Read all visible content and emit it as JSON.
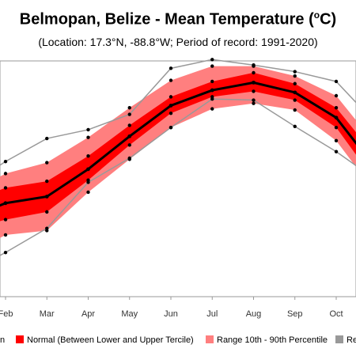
{
  "chart_data": {
    "type": "line",
    "title": "Belmopan, Belize - Mean Temperature (oC)",
    "subtitle": "(Location: 17.3°N, -88.8°W; Period of record: 1991-2020)",
    "categories": [
      "Feb",
      "Mar",
      "Apr",
      "May",
      "Jun",
      "Jul",
      "Aug",
      "Sep",
      "Oct"
    ],
    "x_range_months": [
      1.05,
      2.95
    ],
    "y_range": [
      0,
      100
    ],
    "grid": false,
    "legend_position": "bottom",
    "series": [
      {
        "name": "Mean",
        "color": "#000000",
        "x": [
          0.8,
          1,
          2,
          3,
          4,
          5,
          6,
          7,
          8,
          9,
          9.6
        ],
        "values": [
          39.0,
          40.5,
          43.5,
          56.0,
          71.0,
          85.0,
          92.0,
          95.5,
          91.0,
          79.5,
          65.0
        ]
      },
      {
        "name": "Normal (Between Lower and Upper Tercile)",
        "color": "#ff0000",
        "upper": [
          46.0,
          47.5,
          50.5,
          62.0,
          76.0,
          89.0,
          96.0,
          100.0,
          95.0,
          84.0,
          70.0
        ],
        "lower": [
          32.0,
          33.0,
          36.5,
          51.0,
          67.0,
          81.5,
          89.0,
          91.5,
          87.5,
          75.0,
          59.5
        ],
        "x": [
          0.8,
          1,
          2,
          3,
          4,
          5,
          6,
          7,
          8,
          9,
          9.6
        ]
      },
      {
        "name": "Range 10th - 90th Percentile",
        "color": "#ff7f7f",
        "upper": [
          52.0,
          54.0,
          59.0,
          70.5,
          84.0,
          96.5,
          103.0,
          103.0,
          98.5,
          89.5,
          75.5
        ],
        "lower": [
          24.0,
          26.0,
          28.0,
          45.5,
          60.5,
          75.0,
          83.5,
          86.0,
          83.0,
          69.0,
          54.0
        ],
        "x": [
          0.8,
          1,
          2,
          3,
          4,
          5,
          6,
          7,
          8,
          9,
          9.6
        ]
      },
      {
        "name": "Record",
        "color": "#999999",
        "upper": [
          57.0,
          59.5,
          70.0,
          74.0,
          81.0,
          102.0,
          106.0,
          103.5,
          100.5,
          96.0,
          84.0
        ],
        "lower": [
          16.0,
          18.0,
          29.0,
          50.0,
          61.0,
          75.0,
          88.0,
          87.5,
          75.5,
          64.0,
          56.0
        ],
        "x": [
          0.8,
          1,
          2,
          3,
          4,
          5,
          6,
          7,
          8,
          9,
          9.6
        ]
      }
    ],
    "legend_labels": [
      "n",
      "Normal (Between Lower and Upper Tercile)",
      "Range 10th - 90th Percentile",
      "Re"
    ]
  }
}
